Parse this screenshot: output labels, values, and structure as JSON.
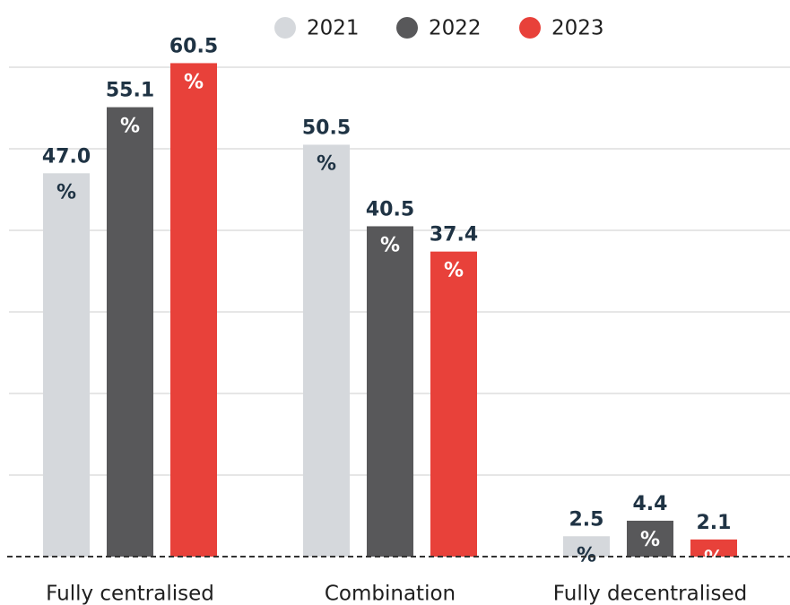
{
  "chart_data": {
    "type": "bar",
    "categories": [
      "Fully centralised",
      "Combination",
      "Fully decentralised"
    ],
    "series": [
      {
        "name": "2021",
        "color": "#d5d8dc",
        "values": [
          47.0,
          50.5,
          2.5
        ],
        "value_labels": [
          "47.0%",
          "50.5%",
          "2.5%"
        ]
      },
      {
        "name": "2022",
        "color": "#58585a",
        "values": [
          55.1,
          40.5,
          4.4
        ],
        "value_labels": [
          "55.1%",
          "40.5%",
          "4.4%"
        ]
      },
      {
        "name": "2023",
        "color": "#e8413a",
        "values": [
          60.5,
          37.4,
          2.1
        ],
        "value_labels": [
          "60.5%",
          "37.4%",
          "2.1%"
        ]
      }
    ],
    "ylim": [
      0,
      65
    ],
    "yticks": [
      0,
      10,
      20,
      30,
      40,
      50,
      60
    ],
    "grid": true,
    "legend": "top"
  }
}
